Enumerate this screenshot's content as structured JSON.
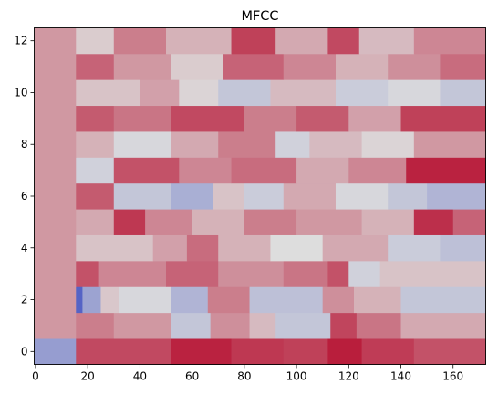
{
  "chart_data": {
    "type": "heatmap",
    "title": "MFCC",
    "xlabel": "",
    "ylabel": "",
    "colormap": "coolwarm",
    "colors": {
      "cold": "#3b4cc0",
      "neutral": "#dddddd",
      "warm": "#b40426"
    },
    "xlim": [
      -0.5,
      172.5
    ],
    "ylim": [
      -0.5,
      12.5
    ],
    "value_range": [
      0,
      1
    ],
    "x_ticks": [
      0,
      20,
      40,
      60,
      80,
      100,
      120,
      140,
      160
    ],
    "y_ticks": [
      0,
      2,
      4,
      6,
      8,
      10,
      12
    ],
    "rows": [
      {
        "coefficient": 0,
        "segments": [
          {
            "x0": -0.5,
            "x1": 15.5,
            "value": 0.28
          },
          {
            "x0": 15.5,
            "x1": 52,
            "value": 0.84
          },
          {
            "x0": 52,
            "x1": 75,
            "value": 0.93
          },
          {
            "x0": 75,
            "x1": 95,
            "value": 0.88
          },
          {
            "x0": 95,
            "x1": 112,
            "value": 0.86
          },
          {
            "x0": 112,
            "x1": 125,
            "value": 0.94
          },
          {
            "x0": 125,
            "x1": 145,
            "value": 0.87
          },
          {
            "x0": 145,
            "x1": 172.5,
            "value": 0.82
          }
        ]
      },
      {
        "coefficient": 1,
        "segments": [
          {
            "x0": -0.5,
            "x1": 15.5,
            "value": 0.66
          },
          {
            "x0": 15.5,
            "x1": 30,
            "value": 0.72
          },
          {
            "x0": 30,
            "x1": 52,
            "value": 0.66
          },
          {
            "x0": 52,
            "x1": 67,
            "value": 0.42
          },
          {
            "x0": 67,
            "x1": 82,
            "value": 0.68
          },
          {
            "x0": 82,
            "x1": 92,
            "value": 0.58
          },
          {
            "x0": 92,
            "x1": 113,
            "value": 0.42
          },
          {
            "x0": 113,
            "x1": 123,
            "value": 0.85
          },
          {
            "x0": 123,
            "x1": 140,
            "value": 0.74
          },
          {
            "x0": 140,
            "x1": 172.5,
            "value": 0.62
          }
        ]
      },
      {
        "coefficient": 2,
        "segments": [
          {
            "x0": -0.5,
            "x1": 15.5,
            "value": 0.66
          },
          {
            "x0": 15.5,
            "x1": 18,
            "value": 0.08
          },
          {
            "x0": 18,
            "x1": 25,
            "value": 0.3
          },
          {
            "x0": 25,
            "x1": 32,
            "value": 0.55
          },
          {
            "x0": 32,
            "x1": 52,
            "value": 0.48
          },
          {
            "x0": 52,
            "x1": 66,
            "value": 0.36
          },
          {
            "x0": 66,
            "x1": 82,
            "value": 0.72
          },
          {
            "x0": 82,
            "x1": 110,
            "value": 0.4
          },
          {
            "x0": 110,
            "x1": 122,
            "value": 0.68
          },
          {
            "x0": 122,
            "x1": 140,
            "value": 0.6
          },
          {
            "x0": 140,
            "x1": 172.5,
            "value": 0.42
          }
        ]
      },
      {
        "coefficient": 3,
        "segments": [
          {
            "x0": -0.5,
            "x1": 15.5,
            "value": 0.66
          },
          {
            "x0": 15.5,
            "x1": 24,
            "value": 0.82
          },
          {
            "x0": 24,
            "x1": 50,
            "value": 0.7
          },
          {
            "x0": 50,
            "x1": 70,
            "value": 0.78
          },
          {
            "x0": 70,
            "x1": 95,
            "value": 0.68
          },
          {
            "x0": 95,
            "x1": 112,
            "value": 0.74
          },
          {
            "x0": 112,
            "x1": 120,
            "value": 0.82
          },
          {
            "x0": 120,
            "x1": 132,
            "value": 0.46
          },
          {
            "x0": 132,
            "x1": 172.5,
            "value": 0.56
          }
        ]
      },
      {
        "coefficient": 4,
        "segments": [
          {
            "x0": -0.5,
            "x1": 15.5,
            "value": 0.66
          },
          {
            "x0": 15.5,
            "x1": 45,
            "value": 0.56
          },
          {
            "x0": 45,
            "x1": 58,
            "value": 0.64
          },
          {
            "x0": 58,
            "x1": 70,
            "value": 0.76
          },
          {
            "x0": 70,
            "x1": 90,
            "value": 0.6
          },
          {
            "x0": 90,
            "x1": 110,
            "value": 0.5
          },
          {
            "x0": 110,
            "x1": 135,
            "value": 0.62
          },
          {
            "x0": 135,
            "x1": 155,
            "value": 0.44
          },
          {
            "x0": 155,
            "x1": 172.5,
            "value": 0.4
          }
        ]
      },
      {
        "coefficient": 5,
        "segments": [
          {
            "x0": -0.5,
            "x1": 15.5,
            "value": 0.66
          },
          {
            "x0": 15.5,
            "x1": 30,
            "value": 0.62
          },
          {
            "x0": 30,
            "x1": 42,
            "value": 0.88
          },
          {
            "x0": 42,
            "x1": 60,
            "value": 0.7
          },
          {
            "x0": 60,
            "x1": 80,
            "value": 0.6
          },
          {
            "x0": 80,
            "x1": 100,
            "value": 0.72
          },
          {
            "x0": 100,
            "x1": 125,
            "value": 0.66
          },
          {
            "x0": 125,
            "x1": 145,
            "value": 0.6
          },
          {
            "x0": 145,
            "x1": 160,
            "value": 0.9
          },
          {
            "x0": 160,
            "x1": 172.5,
            "value": 0.78
          }
        ]
      },
      {
        "coefficient": 6,
        "segments": [
          {
            "x0": -0.5,
            "x1": 15.5,
            "value": 0.66
          },
          {
            "x0": 15.5,
            "x1": 30,
            "value": 0.8
          },
          {
            "x0": 30,
            "x1": 52,
            "value": 0.42
          },
          {
            "x0": 52,
            "x1": 68,
            "value": 0.34
          },
          {
            "x0": 68,
            "x1": 80,
            "value": 0.56
          },
          {
            "x0": 80,
            "x1": 95,
            "value": 0.44
          },
          {
            "x0": 95,
            "x1": 115,
            "value": 0.62
          },
          {
            "x0": 115,
            "x1": 135,
            "value": 0.48
          },
          {
            "x0": 135,
            "x1": 150,
            "value": 0.42
          },
          {
            "x0": 150,
            "x1": 172.5,
            "value": 0.36
          }
        ]
      },
      {
        "coefficient": 7,
        "segments": [
          {
            "x0": -0.5,
            "x1": 15.5,
            "value": 0.66
          },
          {
            "x0": 15.5,
            "x1": 30,
            "value": 0.46
          },
          {
            "x0": 30,
            "x1": 55,
            "value": 0.82
          },
          {
            "x0": 55,
            "x1": 75,
            "value": 0.7
          },
          {
            "x0": 75,
            "x1": 100,
            "value": 0.76
          },
          {
            "x0": 100,
            "x1": 120,
            "value": 0.62
          },
          {
            "x0": 120,
            "x1": 142,
            "value": 0.7
          },
          {
            "x0": 142,
            "x1": 172.5,
            "value": 0.93
          }
        ]
      },
      {
        "coefficient": 8,
        "segments": [
          {
            "x0": -0.5,
            "x1": 15.5,
            "value": 0.66
          },
          {
            "x0": 15.5,
            "x1": 30,
            "value": 0.6
          },
          {
            "x0": 30,
            "x1": 52,
            "value": 0.48
          },
          {
            "x0": 52,
            "x1": 70,
            "value": 0.62
          },
          {
            "x0": 70,
            "x1": 92,
            "value": 0.72
          },
          {
            "x0": 92,
            "x1": 105,
            "value": 0.46
          },
          {
            "x0": 105,
            "x1": 125,
            "value": 0.58
          },
          {
            "x0": 125,
            "x1": 145,
            "value": 0.52
          },
          {
            "x0": 145,
            "x1": 172.5,
            "value": 0.66
          }
        ]
      },
      {
        "coefficient": 9,
        "segments": [
          {
            "x0": -0.5,
            "x1": 15.5,
            "value": 0.66
          },
          {
            "x0": 15.5,
            "x1": 30,
            "value": 0.8
          },
          {
            "x0": 30,
            "x1": 52,
            "value": 0.74
          },
          {
            "x0": 52,
            "x1": 80,
            "value": 0.84
          },
          {
            "x0": 80,
            "x1": 100,
            "value": 0.72
          },
          {
            "x0": 100,
            "x1": 120,
            "value": 0.8
          },
          {
            "x0": 120,
            "x1": 140,
            "value": 0.64
          },
          {
            "x0": 140,
            "x1": 172.5,
            "value": 0.86
          }
        ]
      },
      {
        "coefficient": 10,
        "segments": [
          {
            "x0": -0.5,
            "x1": 15.5,
            "value": 0.66
          },
          {
            "x0": 15.5,
            "x1": 40,
            "value": 0.56
          },
          {
            "x0": 40,
            "x1": 55,
            "value": 0.64
          },
          {
            "x0": 55,
            "x1": 70,
            "value": 0.52
          },
          {
            "x0": 70,
            "x1": 90,
            "value": 0.42
          },
          {
            "x0": 90,
            "x1": 115,
            "value": 0.58
          },
          {
            "x0": 115,
            "x1": 135,
            "value": 0.44
          },
          {
            "x0": 135,
            "x1": 155,
            "value": 0.48
          },
          {
            "x0": 155,
            "x1": 172.5,
            "value": 0.42
          }
        ]
      },
      {
        "coefficient": 11,
        "segments": [
          {
            "x0": -0.5,
            "x1": 15.5,
            "value": 0.66
          },
          {
            "x0": 15.5,
            "x1": 30,
            "value": 0.78
          },
          {
            "x0": 30,
            "x1": 52,
            "value": 0.66
          },
          {
            "x0": 52,
            "x1": 72,
            "value": 0.54
          },
          {
            "x0": 72,
            "x1": 95,
            "value": 0.78
          },
          {
            "x0": 95,
            "x1": 115,
            "value": 0.7
          },
          {
            "x0": 115,
            "x1": 135,
            "value": 0.6
          },
          {
            "x0": 135,
            "x1": 155,
            "value": 0.68
          },
          {
            "x0": 155,
            "x1": 172.5,
            "value": 0.76
          }
        ]
      },
      {
        "coefficient": 12,
        "segments": [
          {
            "x0": -0.5,
            "x1": 15.5,
            "value": 0.66
          },
          {
            "x0": 15.5,
            "x1": 30,
            "value": 0.54
          },
          {
            "x0": 30,
            "x1": 50,
            "value": 0.72
          },
          {
            "x0": 50,
            "x1": 75,
            "value": 0.6
          },
          {
            "x0": 75,
            "x1": 92,
            "value": 0.86
          },
          {
            "x0": 92,
            "x1": 112,
            "value": 0.62
          },
          {
            "x0": 112,
            "x1": 124,
            "value": 0.84
          },
          {
            "x0": 124,
            "x1": 145,
            "value": 0.58
          },
          {
            "x0": 145,
            "x1": 172.5,
            "value": 0.7
          }
        ]
      }
    ]
  }
}
